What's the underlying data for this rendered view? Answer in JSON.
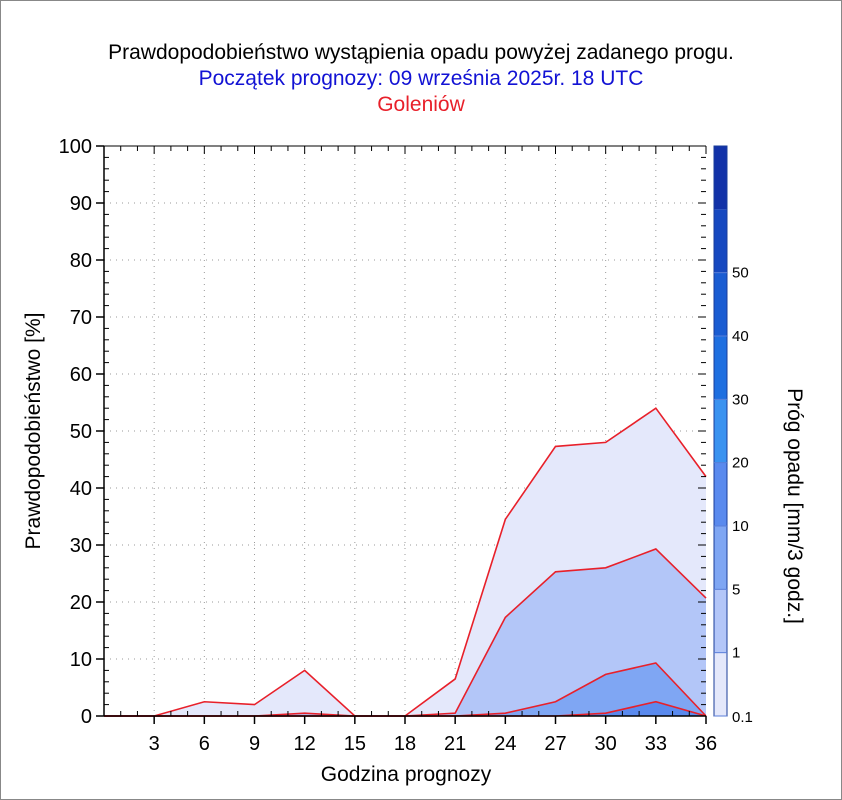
{
  "chart_data": {
    "type": "area",
    "title": "Prawdopodobieństwo wystąpienia opadu powyżej zadanego progu.",
    "subtitle": "Początek prognozy: 09 września 2025r. 18 UTC",
    "location": "Goleniów",
    "xlabel": "Godzina prognozy",
    "ylabel": "Prawdopodobieństwo [%]",
    "colorbar_label": "Próg opadu [mm/3 godz.]",
    "x": [
      0,
      3,
      6,
      9,
      12,
      15,
      18,
      21,
      24,
      27,
      30,
      33,
      36
    ],
    "x_ticks": [
      "3",
      "6",
      "9",
      "12",
      "15",
      "18",
      "21",
      "24",
      "27",
      "30",
      "33",
      "36"
    ],
    "xlim": [
      0,
      36
    ],
    "ylim": [
      0,
      100
    ],
    "y_ticks": [
      "0",
      "10",
      "20",
      "30",
      "40",
      "50",
      "60",
      "70",
      "80",
      "90",
      "100"
    ],
    "grid": true,
    "series": [
      {
        "name": "0.1",
        "color": "#e4e8fb",
        "values": [
          0,
          0,
          2.5,
          2,
          8,
          0,
          0,
          6.5,
          34.5,
          47.3,
          48,
          54,
          42
        ]
      },
      {
        "name": "1",
        "color": "#b3c6f8",
        "values": [
          0,
          0,
          0,
          0,
          0.5,
          0,
          0,
          0.5,
          17.3,
          25.3,
          26,
          29.3,
          20.7
        ]
      },
      {
        "name": "5",
        "color": "#7fa6f3",
        "values": [
          0,
          0,
          0,
          0,
          0,
          0,
          0,
          0,
          0.5,
          2.5,
          7.3,
          9.3,
          0
        ]
      },
      {
        "name": "10",
        "color": "#5a8aee",
        "values": [
          0,
          0,
          0,
          0,
          0,
          0,
          0,
          0,
          0,
          0,
          0.5,
          2.5,
          0
        ]
      }
    ],
    "colorbar": {
      "levels": [
        "0.1",
        "1",
        "5",
        "10",
        "20",
        "30",
        "40",
        "50"
      ],
      "colors": [
        "#e4e8fb",
        "#b3c6f8",
        "#7fa6f3",
        "#5a8aee",
        "#3a92f0",
        "#1f6fe0",
        "#1a5cd2",
        "#1648c0",
        "#1232a8"
      ]
    },
    "line_color": "#e8202a"
  }
}
